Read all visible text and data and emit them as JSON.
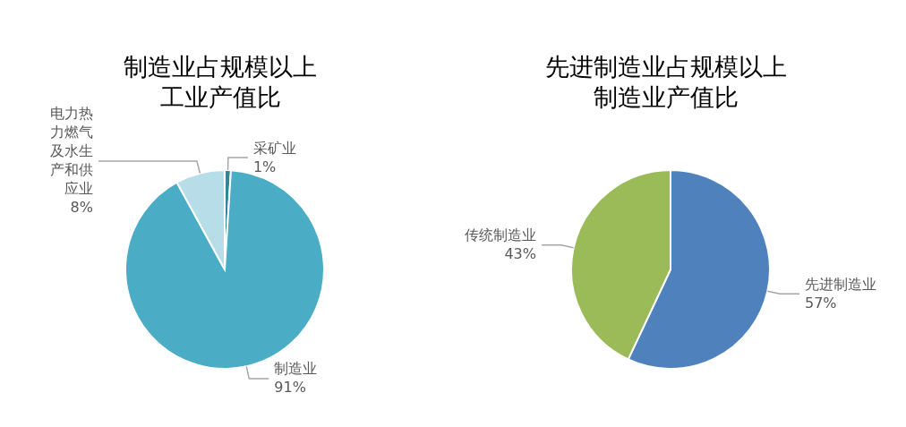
{
  "chart_data": [
    {
      "type": "pie",
      "title": "制造业占规模以上工业产值比",
      "categories": [
        "采矿业",
        "制造业",
        "电力热力燃气及水生产和供应业"
      ],
      "values": [
        1,
        91,
        8
      ],
      "value_labels": [
        "1%",
        "91%",
        "8%"
      ],
      "colors": [
        "#31859c",
        "#4bacc6",
        "#b7dee8"
      ],
      "legend": false
    },
    {
      "type": "pie",
      "title": "先进制造业占规模以上制造业产值比",
      "categories": [
        "先进制造业",
        "传统制造业"
      ],
      "values": [
        57,
        43
      ],
      "value_labels": [
        "57%",
        "43%"
      ],
      "colors": [
        "#4f81bd",
        "#9bbb59"
      ],
      "legend": false
    }
  ]
}
